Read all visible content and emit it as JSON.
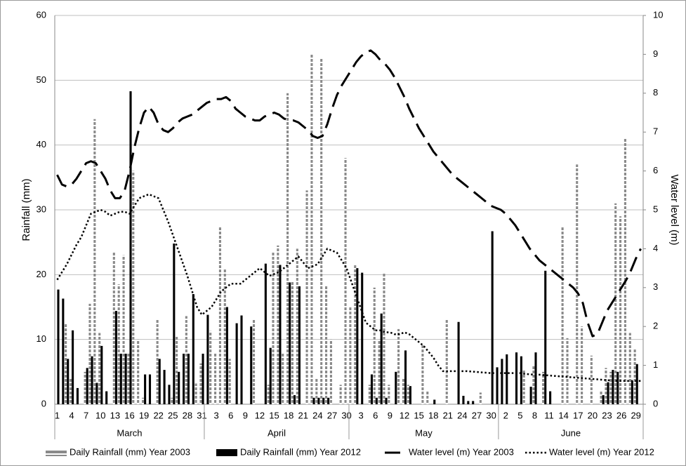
{
  "chart_data": {
    "type": "combo",
    "y_label": "Rainfall (mm)",
    "y2_label": "Water level (m)",
    "ylim": [
      0,
      60
    ],
    "yticks": [
      0,
      10,
      20,
      30,
      40,
      50,
      60
    ],
    "y2lim": [
      0,
      10
    ],
    "y2ticks": [
      0,
      1,
      2,
      3,
      4,
      5,
      6,
      7,
      8,
      9,
      10
    ],
    "grid": true,
    "legend": "bottom",
    "categories": [
      "1",
      null,
      null,
      "4",
      null,
      null,
      "7",
      null,
      null,
      "10",
      null,
      null,
      "13",
      null,
      null,
      "16",
      null,
      null,
      "19",
      null,
      null,
      "22",
      null,
      null,
      "25",
      null,
      null,
      "28",
      null,
      null,
      "31",
      null,
      null,
      "3",
      null,
      null,
      "6",
      null,
      null,
      "9",
      null,
      null,
      "12",
      null,
      null,
      "15",
      null,
      null,
      "18",
      null,
      null,
      "21",
      null,
      null,
      "24",
      null,
      null,
      "27",
      null,
      null,
      "30",
      null,
      null,
      "3",
      null,
      null,
      "6",
      null,
      null,
      "9",
      null,
      null,
      "12",
      null,
      null,
      "15",
      null,
      null,
      "18",
      null,
      null,
      "21",
      null,
      null,
      "24",
      null,
      null,
      "27",
      null,
      null,
      "30",
      null,
      null,
      "2",
      null,
      null,
      "5",
      null,
      null,
      "8",
      null,
      null,
      "11",
      null,
      null,
      "14",
      null,
      null,
      "17",
      null,
      null,
      "20",
      null,
      null,
      "23",
      null,
      null,
      "26",
      null,
      null,
      "29",
      null
    ],
    "groups": [
      {
        "label": "March",
        "size": 31
      },
      {
        "label": "April",
        "size": 30
      },
      {
        "label": "May",
        "size": 31
      },
      {
        "label": "June",
        "size": 30
      }
    ],
    "series": [
      {
        "name": "Daily Rainfall (mm) Year 2003",
        "type": "bar",
        "color": "#8a8a8a",
        "values": [
          0,
          0,
          12.5,
          4,
          0,
          0,
          5,
          15.5,
          44,
          11,
          0,
          0,
          23.5,
          18.5,
          23,
          8,
          36,
          10,
          1,
          0,
          0,
          13,
          0,
          0,
          1,
          10.5,
          0,
          13.6,
          0,
          3.2,
          6.3,
          0,
          11.3,
          8,
          27.5,
          21,
          7,
          0,
          0,
          0,
          0,
          13,
          0,
          0,
          3,
          23.5,
          24.5,
          8,
          48,
          19,
          24,
          0,
          33,
          54,
          4,
          53.5,
          18.3,
          10,
          0,
          3,
          38,
          15,
          21.5,
          0,
          0,
          3,
          18,
          10,
          20.2,
          3,
          0,
          11.6,
          4,
          3,
          0,
          0,
          9.3,
          2,
          0,
          0,
          0,
          13,
          0,
          0,
          0,
          0,
          0,
          0,
          1.8,
          0,
          0,
          0,
          0,
          0,
          0,
          0,
          0,
          5.2,
          0,
          6,
          0,
          5,
          0,
          0,
          0,
          27.5,
          10.2,
          0,
          37,
          12,
          0,
          7.5,
          0,
          2,
          5.6,
          5,
          31,
          29,
          41,
          11,
          8.6,
          0
        ]
      },
      {
        "name": "Daily Rainfall (mm) Year 2012",
        "type": "bar",
        "color": "#000000",
        "values": [
          17.7,
          16.3,
          7,
          11.4,
          2.5,
          0,
          5.6,
          7.4,
          3.3,
          9,
          2,
          0,
          14.4,
          7.8,
          7.8,
          48.3,
          0,
          0,
          4.6,
          4.6,
          0,
          7,
          5.3,
          3,
          24.8,
          5,
          7.8,
          7.8,
          17,
          0,
          7.8,
          13.8,
          0,
          0,
          0,
          15,
          0,
          12.5,
          13.7,
          0,
          12,
          0,
          0,
          21.7,
          8.7,
          0,
          21.5,
          0,
          18.8,
          1.4,
          18.2,
          0,
          0,
          1,
          1,
          1,
          1,
          0,
          0,
          0,
          0,
          0,
          21,
          20.3,
          0,
          4.6,
          1,
          14,
          1,
          0,
          5,
          0,
          8.3,
          2.8,
          0,
          0,
          0,
          0,
          0.7,
          0,
          0,
          0,
          0,
          12.7,
          1.3,
          0.5,
          0.5,
          0,
          0,
          0,
          26.7,
          5.7,
          7,
          7.7,
          0,
          8,
          7.4,
          0,
          2.7,
          8,
          0,
          20.6,
          2,
          0,
          0,
          0,
          0,
          0,
          0,
          0,
          0,
          0,
          0,
          1.4,
          3.4,
          5.3,
          5,
          0,
          0,
          3.6,
          6.2,
          0
        ]
      },
      {
        "name": "Water level (m) Year 2003",
        "type": "line",
        "axis": "y2",
        "dash": "dashed",
        "color": "#000000",
        "values": [
          5.9,
          5.65,
          5.6,
          5.65,
          5.8,
          6.0,
          6.2,
          6.25,
          6.2,
          6.0,
          5.8,
          5.5,
          5.3,
          5.3,
          5.5,
          6.0,
          6.6,
          7.1,
          7.5,
          7.65,
          7.5,
          7.2,
          7.05,
          7.0,
          7.1,
          7.25,
          7.35,
          7.4,
          7.45,
          7.55,
          7.65,
          7.75,
          7.8,
          7.85,
          7.85,
          7.9,
          7.8,
          7.6,
          7.5,
          7.4,
          7.35,
          7.3,
          7.3,
          7.4,
          7.45,
          7.5,
          7.45,
          7.35,
          7.3,
          7.3,
          7.25,
          7.15,
          7.05,
          6.9,
          6.85,
          6.9,
          7.2,
          7.6,
          7.95,
          8.2,
          8.4,
          8.6,
          8.8,
          8.95,
          9.05,
          9.1,
          9.0,
          8.85,
          8.75,
          8.6,
          8.4,
          8.15,
          7.9,
          7.6,
          7.35,
          7.1,
          6.9,
          6.7,
          6.5,
          6.35,
          6.2,
          6.05,
          5.9,
          5.8,
          5.7,
          5.6,
          5.5,
          5.4,
          5.3,
          5.2,
          5.1,
          5.05,
          5.0,
          4.9,
          4.75,
          4.6,
          4.4,
          4.2,
          4.0,
          3.85,
          3.7,
          3.6,
          3.5,
          3.4,
          3.3,
          3.2,
          3.1,
          3.0,
          2.85,
          2.6,
          2.1,
          1.75,
          1.8,
          2.1,
          2.4,
          2.6,
          2.8,
          3.0,
          3.2,
          3.45,
          3.75,
          4.0
        ]
      },
      {
        "name": "Water level (m) Year 2012",
        "type": "line",
        "axis": "y2",
        "dash": "dotted",
        "color": "#000000",
        "values": [
          3.2,
          3.4,
          3.6,
          3.85,
          4.1,
          4.3,
          4.6,
          4.9,
          4.95,
          5.0,
          4.95,
          4.85,
          4.9,
          4.95,
          4.95,
          4.9,
          5.1,
          5.3,
          5.35,
          5.4,
          5.35,
          5.3,
          5.0,
          4.7,
          4.35,
          4.0,
          3.65,
          3.3,
          2.9,
          2.5,
          2.3,
          2.4,
          2.5,
          2.7,
          2.9,
          3.0,
          3.1,
          3.1,
          3.1,
          3.2,
          3.3,
          3.4,
          3.5,
          3.4,
          3.3,
          3.35,
          3.4,
          3.5,
          3.6,
          3.7,
          3.8,
          3.65,
          3.5,
          3.55,
          3.6,
          3.8,
          4.0,
          3.95,
          3.9,
          3.7,
          3.5,
          3.15,
          2.8,
          2.45,
          2.1,
          2.0,
          1.9,
          1.9,
          1.85,
          1.85,
          1.8,
          1.8,
          1.85,
          1.8,
          1.7,
          1.6,
          1.5,
          1.35,
          1.2,
          1.0,
          0.85,
          0.85,
          0.85,
          0.85,
          0.85,
          0.85,
          0.84,
          0.83,
          0.82,
          0.81,
          0.8,
          0.8,
          0.8,
          0.8,
          0.8,
          0.8,
          0.8,
          0.78,
          0.77,
          0.76,
          0.76,
          0.75,
          0.74,
          0.73,
          0.72,
          0.71,
          0.7,
          0.69,
          0.68,
          0.67,
          0.66,
          0.65,
          0.64,
          0.63,
          0.62,
          0.61,
          0.6,
          0.6,
          0.6,
          0.6,
          0.6,
          0.6
        ]
      }
    ]
  }
}
